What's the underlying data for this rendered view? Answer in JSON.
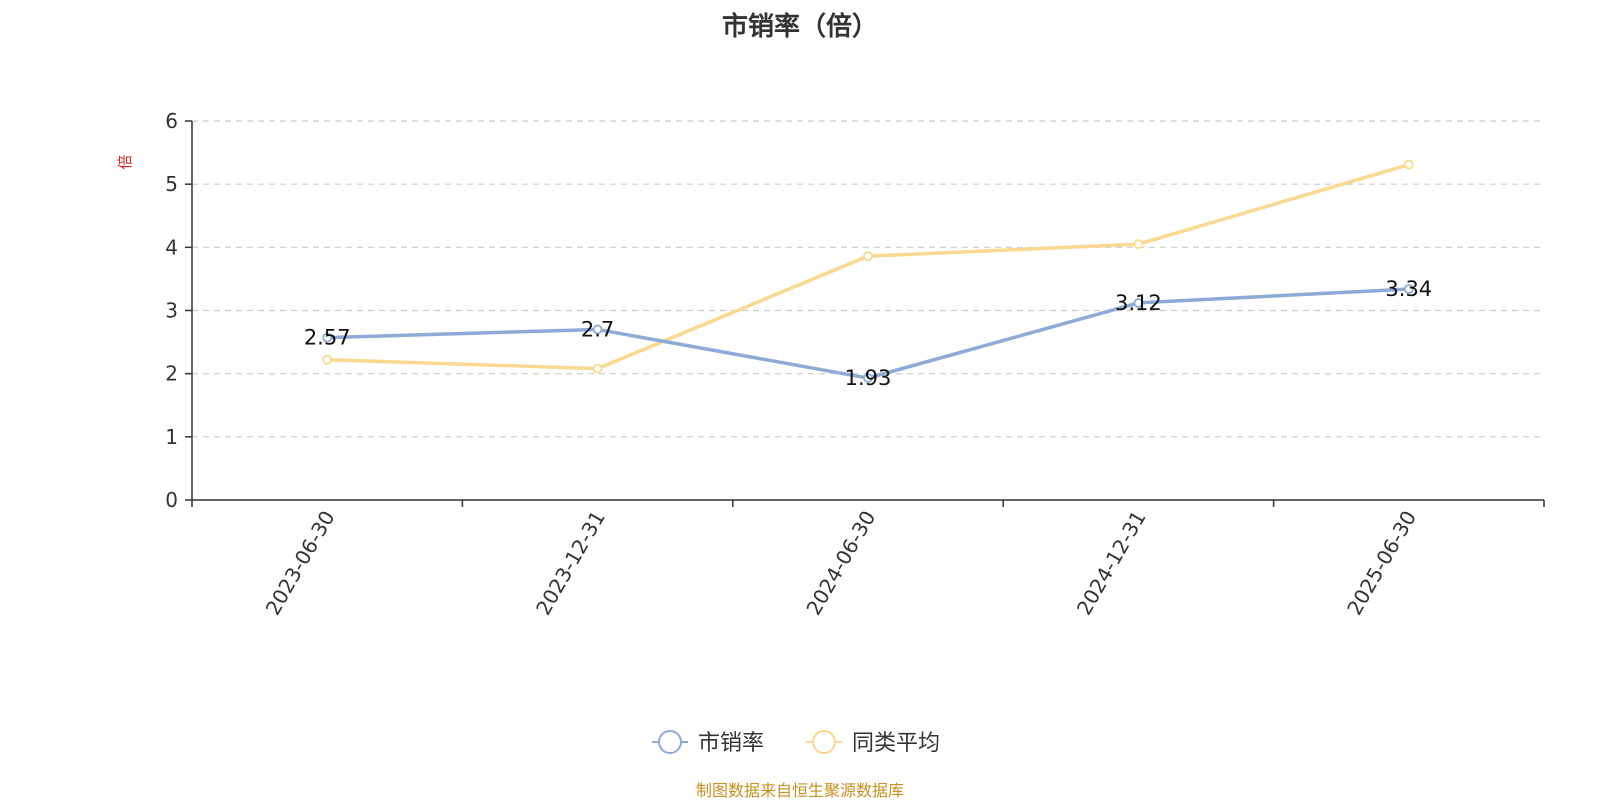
{
  "chart_data": {
    "type": "line",
    "title": "市销率（倍）",
    "ylabel": "倍",
    "xlabel": "",
    "categories": [
      "2023-06-30",
      "2023-12-31",
      "2024-06-30",
      "2024-12-31",
      "2025-06-30"
    ],
    "ylim": [
      0,
      6
    ],
    "yticks": [
      0,
      1,
      2,
      3,
      4,
      5,
      6
    ],
    "grid": true,
    "legend_position": "bottom",
    "series": [
      {
        "name": "市销率",
        "values": [
          2.57,
          2.7,
          1.93,
          3.12,
          3.34
        ],
        "labels": [
          "2.57",
          "2.7",
          "1.93",
          "3.12",
          "3.34"
        ],
        "color": "#8eaad6"
      },
      {
        "name": "同类平均",
        "values": [
          2.22,
          2.08,
          3.86,
          4.05,
          5.31
        ],
        "color": "#fad890"
      }
    ]
  },
  "footer": "制图数据来自恒生聚源数据库",
  "colors": {
    "axis": "#333333",
    "grid": "#cccccc",
    "ylabel": "#e0201e",
    "footer": "#c8901e"
  }
}
